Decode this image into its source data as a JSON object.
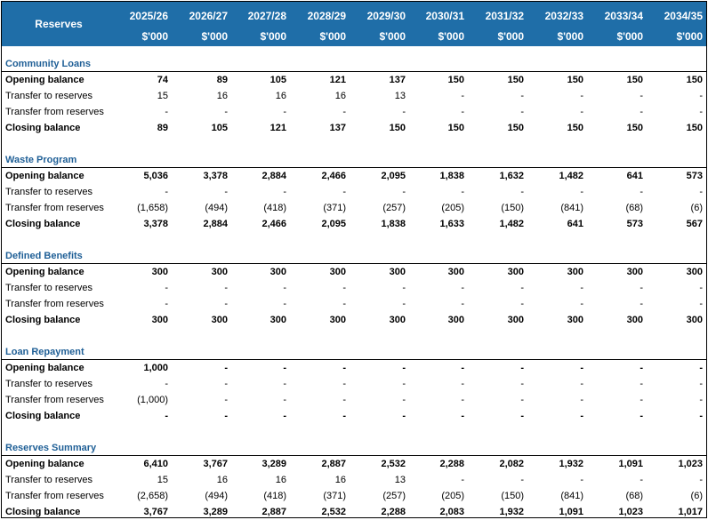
{
  "header": {
    "label": "Reserves",
    "years": [
      "2025/26",
      "2026/27",
      "2027/28",
      "2028/29",
      "2029/30",
      "2030/31",
      "2031/32",
      "2032/33",
      "2033/34",
      "2034/35"
    ],
    "unit": "$'000"
  },
  "sections": [
    {
      "title": "Community Loans",
      "rows": [
        {
          "label": "Opening balance",
          "bold": true,
          "values": [
            "74",
            "89",
            "105",
            "121",
            "137",
            "150",
            "150",
            "150",
            "150",
            "150"
          ]
        },
        {
          "label": "Transfer to reserves",
          "bold": false,
          "values": [
            "15",
            "16",
            "16",
            "16",
            "13",
            "-",
            "-",
            "-",
            "-",
            "-"
          ]
        },
        {
          "label": "Transfer from reserves",
          "bold": false,
          "values": [
            "-",
            "-",
            "-",
            "-",
            "-",
            "-",
            "-",
            "-",
            "-",
            "-"
          ]
        },
        {
          "label": "Closing balance",
          "bold": true,
          "values": [
            "89",
            "105",
            "121",
            "137",
            "150",
            "150",
            "150",
            "150",
            "150",
            "150"
          ]
        }
      ]
    },
    {
      "title": "Waste Program",
      "rows": [
        {
          "label": "Opening balance",
          "bold": true,
          "values": [
            "5,036",
            "3,378",
            "2,884",
            "2,466",
            "2,095",
            "1,838",
            "1,632",
            "1,482",
            "641",
            "573"
          ]
        },
        {
          "label": "Transfer to reserves",
          "bold": false,
          "values": [
            "-",
            "-",
            "-",
            "-",
            "-",
            "-",
            "-",
            "-",
            "-",
            "-"
          ]
        },
        {
          "label": "Transfer from reserves",
          "bold": false,
          "values": [
            "(1,658)",
            "(494)",
            "(418)",
            "(371)",
            "(257)",
            "(205)",
            "(150)",
            "(841)",
            "(68)",
            "(6)"
          ]
        },
        {
          "label": "Closing balance",
          "bold": true,
          "values": [
            "3,378",
            "2,884",
            "2,466",
            "2,095",
            "1,838",
            "1,633",
            "1,482",
            "641",
            "573",
            "567"
          ]
        }
      ]
    },
    {
      "title": "Defined Benefits",
      "rows": [
        {
          "label": "Opening balance",
          "bold": true,
          "values": [
            "300",
            "300",
            "300",
            "300",
            "300",
            "300",
            "300",
            "300",
            "300",
            "300"
          ]
        },
        {
          "label": "Transfer to reserves",
          "bold": false,
          "values": [
            "-",
            "-",
            "-",
            "-",
            "-",
            "-",
            "-",
            "-",
            "-",
            "-"
          ]
        },
        {
          "label": "Transfer from reserves",
          "bold": false,
          "values": [
            "-",
            "-",
            "-",
            "-",
            "-",
            "-",
            "-",
            "-",
            "-",
            "-"
          ]
        },
        {
          "label": "Closing balance",
          "bold": true,
          "values": [
            "300",
            "300",
            "300",
            "300",
            "300",
            "300",
            "300",
            "300",
            "300",
            "300"
          ]
        }
      ]
    },
    {
      "title": "Loan Repayment",
      "rows": [
        {
          "label": "Opening balance",
          "bold": true,
          "values": [
            "1,000",
            "-",
            "-",
            "-",
            "-",
            "-",
            "-",
            "-",
            "-",
            "-"
          ]
        },
        {
          "label": "Transfer to reserves",
          "bold": false,
          "values": [
            "-",
            "-",
            "-",
            "-",
            "-",
            "-",
            "-",
            "-",
            "-",
            "-"
          ]
        },
        {
          "label": "Transfer from reserves",
          "bold": false,
          "values": [
            "(1,000)",
            "-",
            "-",
            "-",
            "-",
            "-",
            "-",
            "-",
            "-",
            "-"
          ]
        },
        {
          "label": "Closing balance",
          "bold": true,
          "values": [
            "-",
            "-",
            "-",
            "-",
            "-",
            "-",
            "-",
            "-",
            "-",
            "-"
          ]
        }
      ]
    },
    {
      "title": "Reserves Summary",
      "rows": [
        {
          "label": "Opening balance",
          "bold": true,
          "values": [
            "6,410",
            "3,767",
            "3,289",
            "2,887",
            "2,532",
            "2,288",
            "2,082",
            "1,932",
            "1,091",
            "1,023"
          ]
        },
        {
          "label": "Transfer to reserves",
          "bold": false,
          "values": [
            "15",
            "16",
            "16",
            "16",
            "13",
            "-",
            "-",
            "-",
            "-",
            "-"
          ]
        },
        {
          "label": "Transfer from reserves",
          "bold": false,
          "values": [
            "(2,658)",
            "(494)",
            "(418)",
            "(371)",
            "(257)",
            "(205)",
            "(150)",
            "(841)",
            "(68)",
            "(6)"
          ]
        },
        {
          "label": "Closing balance",
          "bold": true,
          "values": [
            "3,767",
            "3,289",
            "2,887",
            "2,532",
            "2,288",
            "2,083",
            "1,932",
            "1,091",
            "1,023",
            "1,017"
          ]
        }
      ]
    }
  ]
}
